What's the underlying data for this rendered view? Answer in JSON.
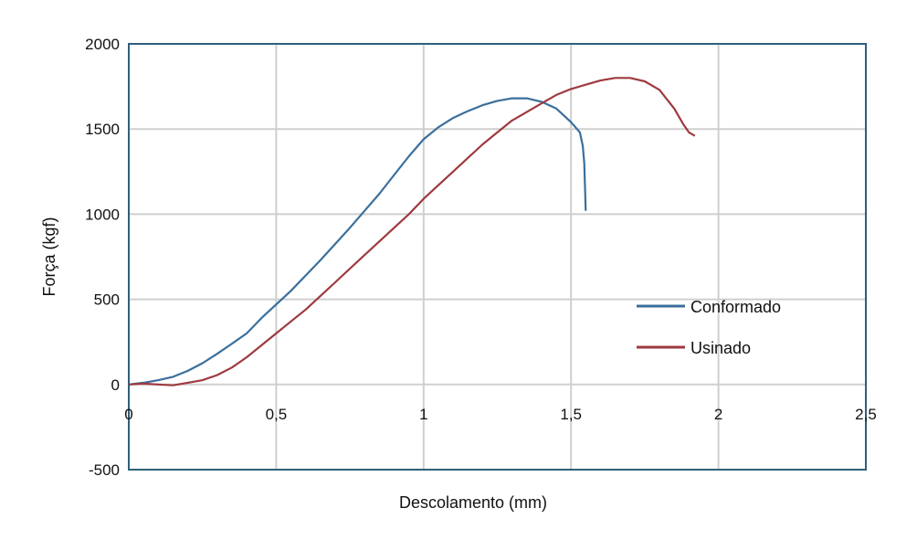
{
  "chart_data": {
    "type": "line",
    "xlabel": "Descolamento (mm)",
    "ylabel": "Força (kgf)",
    "xlim": [
      0,
      2.5
    ],
    "ylim": [
      -500,
      2000
    ],
    "x_ticks": [
      0,
      0.5,
      1,
      1.5,
      2,
      2.5
    ],
    "x_tick_labels": [
      "0",
      "0,5",
      "1",
      "1,5",
      "2",
      "2,5"
    ],
    "y_ticks": [
      -500,
      0,
      500,
      1000,
      1500,
      2000
    ],
    "y_tick_labels": [
      "-500",
      "0",
      "500",
      "1000",
      "1500",
      "2000"
    ],
    "grid": true,
    "legend_position": "right",
    "series": [
      {
        "name": "Conformado",
        "color": "#3a6f9c",
        "points": [
          [
            0,
            0
          ],
          [
            0.05,
            10
          ],
          [
            0.1,
            25
          ],
          [
            0.15,
            45
          ],
          [
            0.2,
            80
          ],
          [
            0.25,
            125
          ],
          [
            0.3,
            180
          ],
          [
            0.35,
            240
          ],
          [
            0.4,
            300
          ],
          [
            0.45,
            390
          ],
          [
            0.5,
            470
          ],
          [
            0.55,
            550
          ],
          [
            0.6,
            640
          ],
          [
            0.65,
            730
          ],
          [
            0.7,
            825
          ],
          [
            0.75,
            920
          ],
          [
            0.8,
            1020
          ],
          [
            0.85,
            1120
          ],
          [
            0.9,
            1230
          ],
          [
            0.95,
            1340
          ],
          [
            1.0,
            1440
          ],
          [
            1.05,
            1510
          ],
          [
            1.1,
            1565
          ],
          [
            1.15,
            1605
          ],
          [
            1.2,
            1640
          ],
          [
            1.25,
            1665
          ],
          [
            1.3,
            1680
          ],
          [
            1.35,
            1680
          ],
          [
            1.4,
            1660
          ],
          [
            1.45,
            1620
          ],
          [
            1.5,
            1540
          ],
          [
            1.53,
            1480
          ],
          [
            1.54,
            1400
          ],
          [
            1.545,
            1300
          ],
          [
            1.55,
            1020
          ]
        ]
      },
      {
        "name": "Usinado",
        "color": "#9e3a3f",
        "points": [
          [
            0,
            0
          ],
          [
            0.05,
            5
          ],
          [
            0.1,
            0
          ],
          [
            0.15,
            -5
          ],
          [
            0.2,
            10
          ],
          [
            0.25,
            25
          ],
          [
            0.3,
            55
          ],
          [
            0.35,
            100
          ],
          [
            0.4,
            160
          ],
          [
            0.45,
            230
          ],
          [
            0.5,
            300
          ],
          [
            0.55,
            370
          ],
          [
            0.6,
            440
          ],
          [
            0.65,
            520
          ],
          [
            0.7,
            600
          ],
          [
            0.75,
            680
          ],
          [
            0.8,
            760
          ],
          [
            0.85,
            840
          ],
          [
            0.9,
            920
          ],
          [
            0.95,
            1000
          ],
          [
            1.0,
            1090
          ],
          [
            1.05,
            1170
          ],
          [
            1.1,
            1250
          ],
          [
            1.15,
            1330
          ],
          [
            1.2,
            1410
          ],
          [
            1.25,
            1480
          ],
          [
            1.3,
            1550
          ],
          [
            1.35,
            1600
          ],
          [
            1.4,
            1650
          ],
          [
            1.45,
            1700
          ],
          [
            1.5,
            1735
          ],
          [
            1.55,
            1760
          ],
          [
            1.6,
            1785
          ],
          [
            1.65,
            1800
          ],
          [
            1.7,
            1800
          ],
          [
            1.75,
            1780
          ],
          [
            1.8,
            1730
          ],
          [
            1.85,
            1620
          ],
          [
            1.88,
            1530
          ],
          [
            1.9,
            1480
          ],
          [
            1.92,
            1460
          ]
        ]
      }
    ]
  }
}
